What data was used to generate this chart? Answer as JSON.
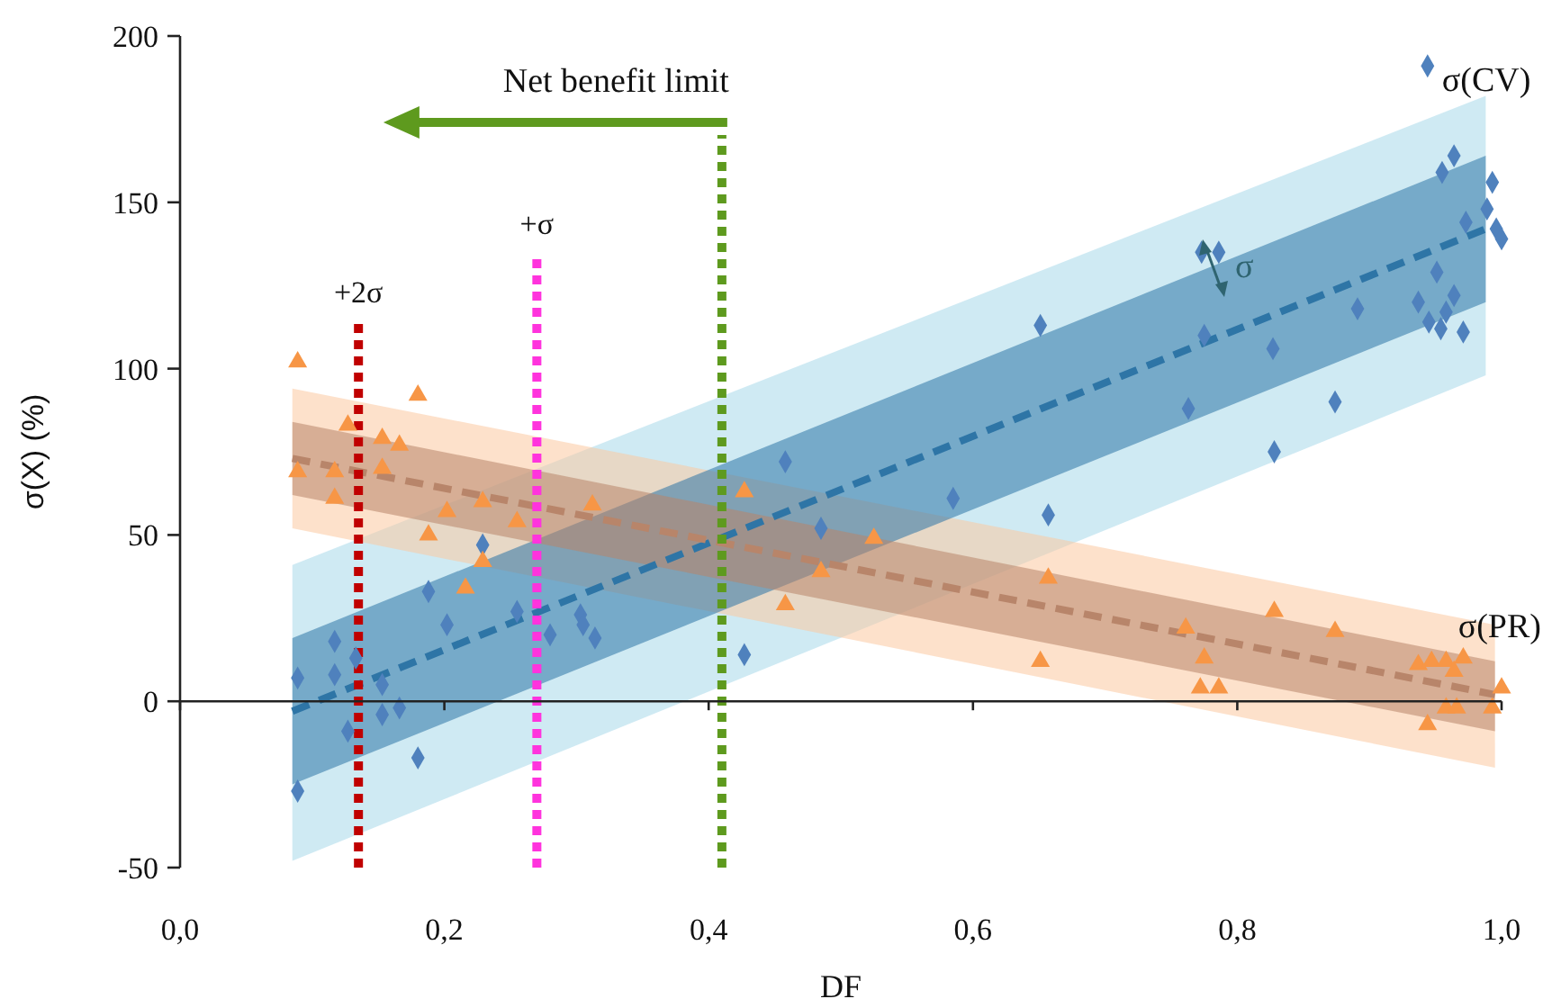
{
  "chart_data": {
    "type": "scatter",
    "xlabel": "DF",
    "ylabel": "σ(X) (%)",
    "xlim": [
      0,
      1
    ],
    "ylim": [
      -50,
      200
    ],
    "xticks": [
      {
        "value": 0,
        "label": "0,0"
      },
      {
        "value": 0.2,
        "label": "0,2"
      },
      {
        "value": 0.4,
        "label": "0,4"
      },
      {
        "value": 0.6,
        "label": "0,6"
      },
      {
        "value": 0.8,
        "label": "0,8"
      },
      {
        "value": 1,
        "label": "1,0"
      }
    ],
    "yticks": [
      -50,
      0,
      50,
      100,
      150,
      200
    ],
    "series": [
      {
        "type": "line",
        "color": "#a8d8ea",
        "x": [
          0.085,
          0.988
        ],
        "values": [
          null,
          null
        ],
        "lower": [
          -48,
          98
        ],
        "upper": [
          41,
          182
        ]
      },
      {
        "type": "line",
        "color": "#fbc9a0",
        "x": [
          0.085,
          0.995
        ],
        "values": [
          null,
          null
        ],
        "lower": [
          52,
          -20
        ],
        "upper": [
          94,
          23
        ]
      },
      {
        "type": "line",
        "color": "#2e75a6",
        "line_style": "dashed",
        "x": [
          0.085,
          0.988
        ],
        "values": [
          -3,
          142
        ],
        "lower": [
          -25,
          120
        ],
        "upper": [
          19,
          164
        ]
      },
      {
        "type": "line",
        "color": "#b8856a",
        "line_style": "dashed",
        "x": [
          0.085,
          0.995
        ],
        "values": [
          73,
          2
        ],
        "lower": [
          62,
          -9
        ],
        "upper": [
          84,
          12
        ]
      },
      {
        "name": "σ(CV)",
        "marker": "diamond",
        "color": "#4f81bd",
        "x": [
          0.089,
          0.089,
          0.117,
          0.117,
          0.127,
          0.133,
          0.153,
          0.153,
          0.166,
          0.18,
          0.188,
          0.202,
          0.229,
          0.255,
          0.28,
          0.303,
          0.305,
          0.314,
          0.427,
          0.458,
          0.485,
          0.585,
          0.657,
          0.763,
          0.828,
          0.874,
          0.651,
          0.773,
          0.786,
          0.827,
          0.775,
          0.891,
          0.937,
          0.944,
          0.955,
          0.964,
          0.951,
          0.964,
          0.945,
          0.954,
          0.958,
          0.971,
          0.973,
          0.989,
          0.993,
          0.996,
          1.0
        ],
        "values": [
          7,
          -27,
          18,
          8,
          -9,
          13,
          5,
          -4,
          -2,
          -17,
          33,
          23,
          47,
          27,
          20,
          26,
          23,
          19,
          14,
          72,
          52,
          61,
          56,
          88,
          75,
          90,
          113,
          135,
          135,
          106,
          110,
          118,
          120,
          191,
          159,
          164,
          129,
          122,
          114,
          112,
          117,
          111,
          144,
          148,
          156,
          142,
          139
        ]
      },
      {
        "name": "σ(PR)",
        "marker": "triangle",
        "color": "#f79646",
        "x": [
          0.089,
          0.18,
          0.127,
          0.153,
          0.166,
          0.089,
          0.427,
          0.117,
          0.117,
          0.153,
          0.202,
          0.188,
          0.229,
          0.229,
          0.216,
          0.255,
          0.312,
          0.458,
          0.485,
          0.525,
          0.657,
          0.651,
          0.761,
          0.775,
          0.772,
          0.786,
          0.828,
          0.874,
          0.937,
          0.947,
          0.958,
          0.971,
          0.964,
          0.944,
          0.958,
          0.966,
          0.993,
          1.0
        ],
        "values": [
          102,
          92,
          83,
          79,
          77,
          69,
          63,
          61,
          69,
          70,
          57,
          50,
          42,
          60,
          34,
          54,
          59,
          29,
          39,
          49,
          37,
          12,
          22,
          13,
          4,
          4,
          27,
          21,
          11,
          12,
          12,
          13,
          9,
          -7,
          -2,
          -2,
          -2,
          4
        ]
      }
    ],
    "ref_lines": [
      {
        "axis": "x",
        "value": 0.135,
        "label": "+2σ",
        "color": "#c00000",
        "line_style": "dotted"
      },
      {
        "axis": "x",
        "value": 0.27,
        "label": "+σ",
        "color": "#ff33dd",
        "line_style": "dotted"
      },
      {
        "axis": "x",
        "value": 0.41,
        "label": "Net benefit limit",
        "color": "#5e9a1e",
        "line_style": "dotted"
      }
    ],
    "annotations": [
      "σ"
    ]
  }
}
